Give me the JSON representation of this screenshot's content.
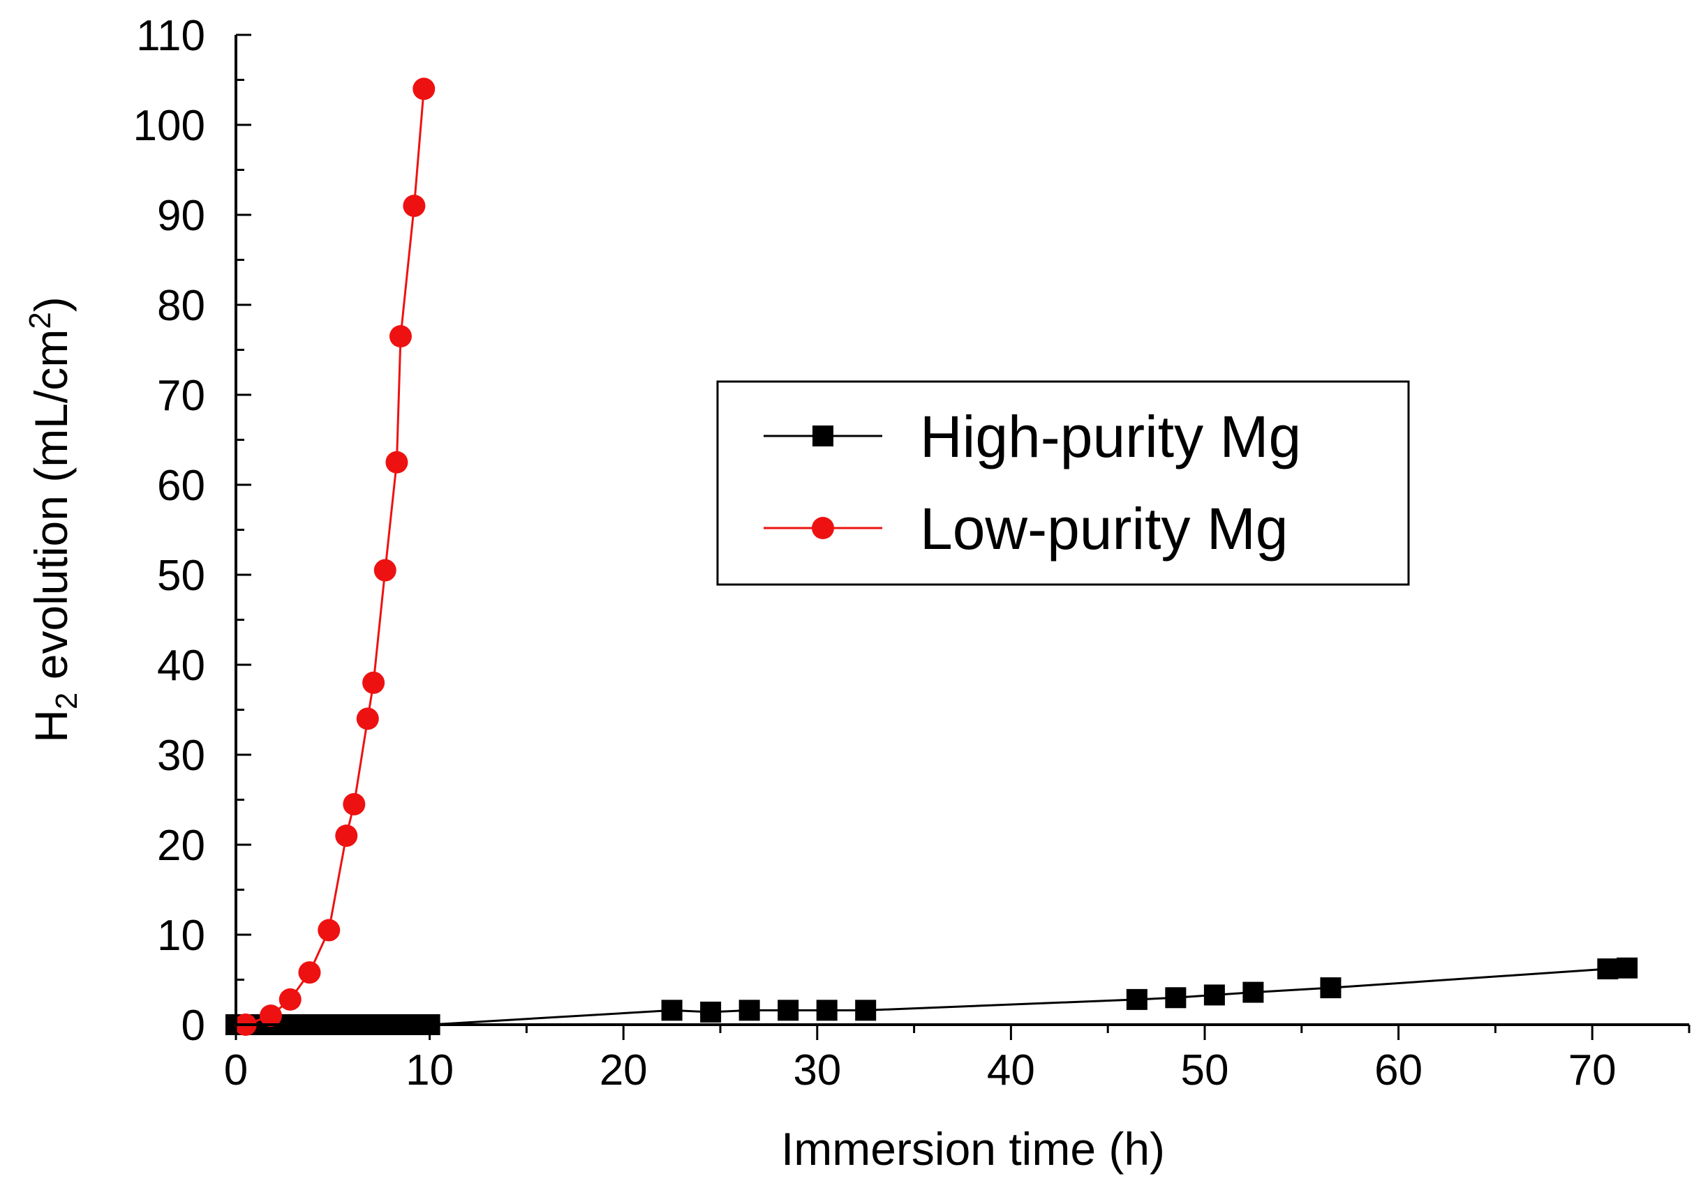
{
  "chart_data": {
    "type": "line",
    "title": "",
    "xlabel": "Immersion time (h)",
    "ylabel": {
      "prefix": "H",
      "subscript": "2",
      "middle": " evolution (mL/cm",
      "superscript": "2",
      "suffix": ")"
    },
    "xlim": [
      0,
      75
    ],
    "ylim": [
      0,
      110
    ],
    "xticks": [
      0,
      10,
      20,
      30,
      40,
      50,
      60,
      70
    ],
    "yticks": [
      0,
      10,
      20,
      30,
      40,
      50,
      60,
      70,
      80,
      90,
      100,
      110
    ],
    "x_minor_step": 5,
    "y_minor_step": 5,
    "grid": false,
    "legend_position": "center-right",
    "series": [
      {
        "name": "High-purity Mg",
        "color": "#000000",
        "marker": "square",
        "x": [
          0,
          0.5,
          1,
          1.5,
          2,
          2.5,
          3,
          3.5,
          4,
          4.5,
          5,
          5.5,
          6,
          6.5,
          7,
          7.5,
          8,
          8.5,
          9,
          9.5,
          10,
          22.5,
          24.5,
          26.5,
          28.5,
          30.5,
          32.5,
          46.5,
          48.5,
          50.5,
          52.5,
          56.5,
          70.8,
          71.8
        ],
        "y": [
          0,
          0,
          0,
          0,
          0,
          0,
          0,
          0,
          0,
          0,
          0,
          0,
          0,
          0,
          0,
          0,
          0,
          0,
          0,
          0,
          0,
          1.6,
          1.4,
          1.6,
          1.6,
          1.6,
          1.6,
          2.8,
          3.0,
          3.3,
          3.6,
          4.1,
          6.2,
          6.3
        ]
      },
      {
        "name": "Low-purity Mg",
        "color": "#ee1111",
        "marker": "circle",
        "x": [
          0.5,
          1.8,
          2.8,
          3.8,
          4.8,
          5.7,
          6.1,
          6.8,
          7.1,
          7.7,
          8.3,
          8.5,
          9.2,
          9.7
        ],
        "y": [
          0,
          1.0,
          2.8,
          5.8,
          10.5,
          21.0,
          24.5,
          34.0,
          38.0,
          50.5,
          62.5,
          76.5,
          91.0,
          104.0
        ]
      }
    ]
  }
}
